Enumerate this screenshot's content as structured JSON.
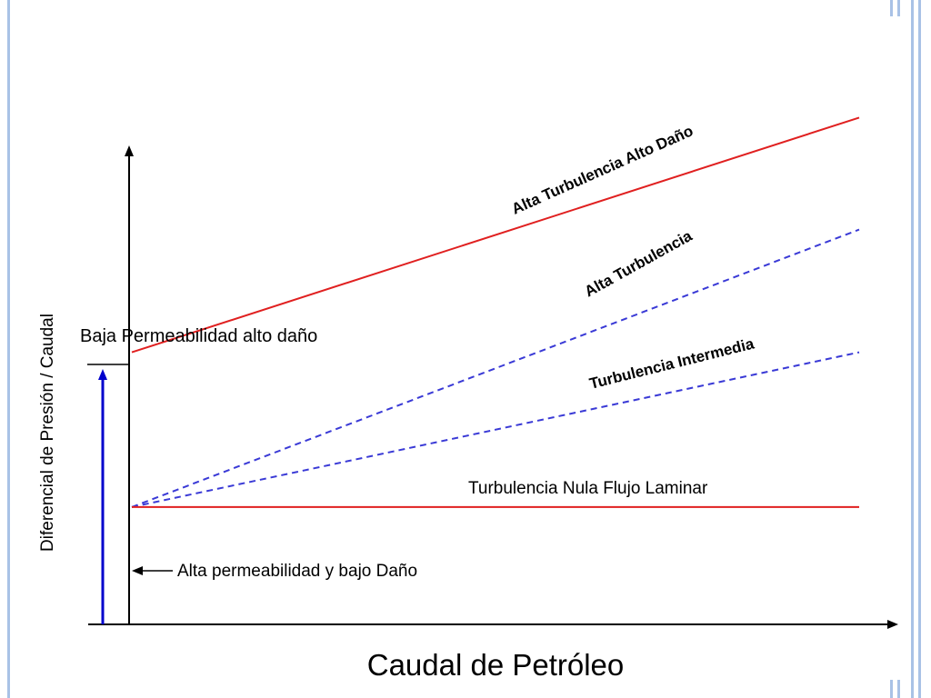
{
  "slide": {
    "frame_color": "#a9c2e6"
  },
  "chart_data": {
    "type": "line",
    "title": "",
    "xlabel": "Caudal de Petróleo",
    "ylabel": "Diferencial de Presión / Caudal",
    "grid": false,
    "legend": "none",
    "x_range": [
      0,
      1
    ],
    "y_range": [
      0,
      1
    ],
    "series": [
      {
        "name": "Alta Turbulencia Alto Daño",
        "color": "#e02020",
        "style": "solid",
        "x": [
          0,
          1
        ],
        "y": [
          0.51,
          0.95
        ]
      },
      {
        "name": "Alta Turbulencia",
        "color": "#3a3ad6",
        "style": "dashed",
        "x": [
          0,
          1
        ],
        "y": [
          0.22,
          0.74
        ]
      },
      {
        "name": "Turbulencia Intermedia",
        "color": "#3a3ad6",
        "style": "dashed",
        "x": [
          0,
          1
        ],
        "y": [
          0.22,
          0.51
        ]
      },
      {
        "name": "Turbulencia Nula Flujo Laminar",
        "color": "#e02020",
        "style": "solid",
        "x": [
          0,
          1
        ],
        "y": [
          0.22,
          0.22
        ]
      }
    ],
    "annotations": {
      "baja": "Baja  Permeabilidad alto daño",
      "alta_perm": "Alta permeabilidad y bajo Daño"
    },
    "arrow_color": "#0000cc"
  }
}
